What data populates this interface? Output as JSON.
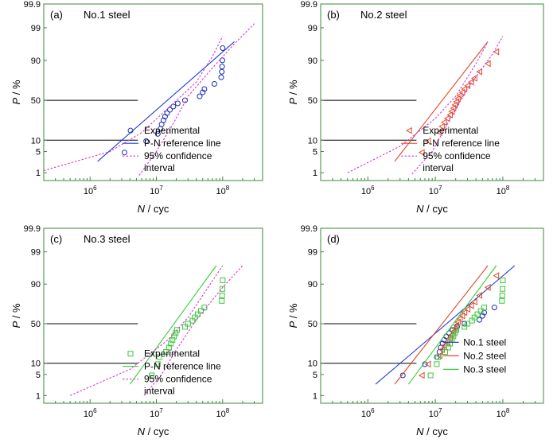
{
  "chart_data": [
    {
      "type": "scatter",
      "panel_label": "(a)",
      "title": "No.1 steel",
      "xlabel_var": "N",
      "xlabel_unit": " / cyc",
      "ylabel_var": "P",
      "ylabel_unit": " / %",
      "x_scale": "log",
      "xlim": [
        200000,
        400000000
      ],
      "x_ticks": [
        {
          "v": 1000000,
          "exp": "6"
        },
        {
          "v": 10000000,
          "exp": "7"
        },
        {
          "v": 100000000,
          "exp": "8"
        }
      ],
      "y_scale": "probability",
      "ylim": [
        0.5,
        99.9
      ],
      "y_ticks": [
        "1",
        "5",
        "10",
        "50",
        "90",
        "99",
        "99.9"
      ],
      "reference_lines_y": [
        10,
        50
      ],
      "legend": {
        "entries": [
          "Experimental",
          "P-N reference line",
          "95% confidence",
          "interval"
        ],
        "position": "bottom-right"
      },
      "series": [
        {
          "name": "Experimental",
          "kind": "points",
          "marker": "circle",
          "color": "#1a2fb0",
          "points": [
            [
              3300000,
              4.7
            ],
            [
              7000000,
              9.5
            ],
            [
              10500000,
              14
            ],
            [
              11500000,
              18
            ],
            [
              12000000,
              22
            ],
            [
              12800000,
              26
            ],
            [
              13500000,
              30
            ],
            [
              14500000,
              34
            ],
            [
              16000000,
              38
            ],
            [
              18000000,
              42
            ],
            [
              21000000,
              46
            ],
            [
              27000000,
              50
            ],
            [
              45000000,
              55
            ],
            [
              50000000,
              60
            ],
            [
              53000000,
              64
            ],
            [
              75000000,
              70
            ],
            [
              95000000,
              77
            ],
            [
              97000000,
              82
            ],
            [
              98000000,
              86
            ],
            [
              99000000,
              90
            ],
            [
              100000000,
              95.3
            ]
          ]
        },
        {
          "name": "P-N reference line",
          "kind": "line",
          "color": "#1f3ed6",
          "points": [
            [
              1300000,
              2.5
            ],
            [
              150000000,
              97
            ]
          ]
        },
        {
          "name": "95% confidence interval",
          "kind": "dashed",
          "color": "#d13ad1",
          "points": [
            [
              200000,
              1.2
            ],
            [
              2000000,
              5
            ],
            [
              6000000,
              15
            ],
            [
              15000000,
              40
            ],
            [
              40000000,
              72
            ],
            [
              70000000,
              92
            ],
            [
              100000000,
              98
            ]
          ]
        },
        {
          "name": "95% confidence interval",
          "kind": "dashed",
          "color": "#d13ad1",
          "points": [
            [
              5500000,
              0.8
            ],
            [
              10000000,
              5
            ],
            [
              17000000,
              20
            ],
            [
              30000000,
              55
            ],
            [
              70000000,
              85
            ],
            [
              150000000,
              96.5
            ],
            [
              300000000,
              99.3
            ]
          ]
        }
      ]
    },
    {
      "type": "scatter",
      "panel_label": "(b)",
      "title": "No.2 steel",
      "xlabel_var": "N",
      "xlabel_unit": " / cyc",
      "ylabel_var": "P",
      "ylabel_unit": " / %",
      "x_scale": "log",
      "xlim": [
        200000,
        400000000
      ],
      "x_ticks": [
        {
          "v": 1000000,
          "exp": "6"
        },
        {
          "v": 10000000,
          "exp": "7"
        },
        {
          "v": 100000000,
          "exp": "8"
        }
      ],
      "y_scale": "probability",
      "ylim": [
        0.5,
        99.9
      ],
      "y_ticks": [
        "1",
        "5",
        "10",
        "50",
        "90",
        "99",
        "99.9"
      ],
      "reference_lines_y": [
        10,
        50
      ],
      "legend": {
        "entries": [
          "Experimental",
          "P-N reference line",
          "95% confidence",
          "interval"
        ],
        "position": "bottom-right"
      },
      "series": [
        {
          "name": "Experimental",
          "kind": "points",
          "marker": "triangle",
          "color": "#e04a2a",
          "points": [
            [
              6300000,
              4.7
            ],
            [
              7800000,
              9.5
            ],
            [
              11500000,
              15
            ],
            [
              12500000,
              20
            ],
            [
              13500000,
              24
            ],
            [
              15000000,
              28
            ],
            [
              16500000,
              32
            ],
            [
              17500000,
              36
            ],
            [
              18500000,
              40
            ],
            [
              19500000,
              44
            ],
            [
              20500000,
              48
            ],
            [
              21500000,
              52
            ],
            [
              23000000,
              56
            ],
            [
              25000000,
              60
            ],
            [
              27000000,
              64
            ],
            [
              30000000,
              68
            ],
            [
              34000000,
              72
            ],
            [
              38000000,
              76
            ],
            [
              45000000,
              82
            ],
            [
              60000000,
              88
            ],
            [
              80000000,
              94
            ]
          ]
        },
        {
          "name": "P-N reference line",
          "kind": "line",
          "color": "#e04a2a",
          "points": [
            [
              2500000,
              2.5
            ],
            [
              60000000,
              97
            ]
          ]
        },
        {
          "name": "95% confidence interval",
          "kind": "dashed",
          "color": "#d13ad1",
          "points": [
            [
              500000,
              1.0
            ],
            [
              3000000,
              7
            ],
            [
              10000000,
              28
            ],
            [
              20000000,
              55
            ],
            [
              40000000,
              88
            ],
            [
              60000000,
              97
            ]
          ]
        },
        {
          "name": "95% confidence interval",
          "kind": "dashed",
          "color": "#d13ad1",
          "points": [
            [
              4500000,
              0.9
            ],
            [
              9000000,
              5
            ],
            [
              15000000,
              22
            ],
            [
              30000000,
              65
            ],
            [
              70000000,
              93
            ],
            [
              100000000,
              98
            ]
          ]
        }
      ]
    },
    {
      "type": "scatter",
      "panel_label": "(c)",
      "title": "No.3 steel",
      "xlabel_var": "N",
      "xlabel_unit": " / cyc",
      "ylabel_var": "P",
      "ylabel_unit": " / %",
      "x_scale": "log",
      "xlim": [
        200000,
        400000000
      ],
      "x_ticks": [
        {
          "v": 1000000,
          "exp": "6"
        },
        {
          "v": 10000000,
          "exp": "7"
        },
        {
          "v": 100000000,
          "exp": "8"
        }
      ],
      "y_scale": "probability",
      "ylim": [
        0.5,
        99.9
      ],
      "y_ticks": [
        "1",
        "5",
        "10",
        "50",
        "90",
        "99",
        "99.9"
      ],
      "reference_lines_y": [
        10,
        50
      ],
      "legend": {
        "entries": [
          "Experimental",
          "P-N reference line",
          "95% confidence",
          "interval"
        ],
        "position": "bottom-right"
      },
      "series": [
        {
          "name": "Experimental",
          "kind": "points",
          "marker": "square",
          "color": "#3cc83c",
          "points": [
            [
              8500000,
              4.7
            ],
            [
              10500000,
              9.5
            ],
            [
              11000000,
              14
            ],
            [
              14000000,
              18
            ],
            [
              15500000,
              22
            ],
            [
              16500000,
              26
            ],
            [
              17500000,
              30
            ],
            [
              18500000,
              34
            ],
            [
              19500000,
              38
            ],
            [
              20500000,
              42
            ],
            [
              27000000,
              46
            ],
            [
              30000000,
              50
            ],
            [
              35000000,
              54
            ],
            [
              38000000,
              58
            ],
            [
              42000000,
              62
            ],
            [
              47000000,
              66
            ],
            [
              53000000,
              70
            ],
            [
              97000000,
              77
            ],
            [
              98000000,
              82
            ],
            [
              99000000,
              87
            ],
            [
              100000000,
              92
            ]
          ]
        },
        {
          "name": "P-N reference line",
          "kind": "line",
          "color": "#3cc83c",
          "points": [
            [
              4000000,
              2.5
            ],
            [
              80000000,
              97
            ]
          ]
        },
        {
          "name": "95% confidence interval",
          "kind": "dashed",
          "color": "#d13ad1",
          "points": [
            [
              500000,
              1.0
            ],
            [
              4000000,
              7
            ],
            [
              15000000,
              30
            ],
            [
              30000000,
              58
            ],
            [
              60000000,
              88
            ],
            [
              100000000,
              97
            ]
          ]
        },
        {
          "name": "95% confidence interval",
          "kind": "dashed",
          "color": "#d13ad1",
          "points": [
            [
              6500000,
              1.0
            ],
            [
              12000000,
              5
            ],
            [
              20000000,
              20
            ],
            [
              40000000,
              55
            ],
            [
              100000000,
              88
            ],
            [
              200000000,
              97
            ]
          ]
        }
      ]
    },
    {
      "type": "scatter",
      "panel_label": "(d)",
      "title": "",
      "xlabel_var": "N",
      "xlabel_unit": " / cyc",
      "ylabel_var": "P",
      "ylabel_unit": " / %",
      "x_scale": "log",
      "xlim": [
        200000,
        400000000
      ],
      "x_ticks": [
        {
          "v": 1000000,
          "exp": "6"
        },
        {
          "v": 10000000,
          "exp": "7"
        },
        {
          "v": 100000000,
          "exp": "8"
        }
      ],
      "y_scale": "probability",
      "ylim": [
        0.5,
        99.9
      ],
      "y_ticks": [
        "1",
        "5",
        "10",
        "50",
        "90",
        "99",
        "99.9"
      ],
      "reference_lines_y": [
        10,
        50
      ],
      "legend": {
        "entries": [
          "No.1 steel",
          "No.2 steel",
          "No.3 steel"
        ],
        "position": "bottom-right"
      },
      "series": [
        {
          "name": "No.1 steel",
          "kind": "points",
          "marker": "circle",
          "color": "#1a2fb0",
          "points": [
            [
              3300000,
              4.7
            ],
            [
              7000000,
              9.5
            ],
            [
              10500000,
              14
            ],
            [
              11500000,
              18
            ],
            [
              12000000,
              22
            ],
            [
              12800000,
              26
            ],
            [
              13500000,
              30
            ],
            [
              14500000,
              34
            ],
            [
              16000000,
              38
            ],
            [
              18000000,
              42
            ],
            [
              21000000,
              46
            ],
            [
              27000000,
              50
            ],
            [
              45000000,
              55
            ],
            [
              50000000,
              60
            ],
            [
              53000000,
              64
            ],
            [
              75000000,
              70
            ]
          ]
        },
        {
          "name": "No.1 steel",
          "kind": "line",
          "color": "#1f3ed6",
          "points": [
            [
              1300000,
              2.5
            ],
            [
              150000000,
              97
            ]
          ]
        },
        {
          "name": "No.2 steel",
          "kind": "points",
          "marker": "triangle",
          "color": "#e04a2a",
          "points": [
            [
              6300000,
              4.7
            ],
            [
              7800000,
              9.5
            ],
            [
              11500000,
              15
            ],
            [
              12500000,
              20
            ],
            [
              13500000,
              24
            ],
            [
              15000000,
              28
            ],
            [
              16500000,
              32
            ],
            [
              17500000,
              36
            ],
            [
              18500000,
              40
            ],
            [
              19500000,
              44
            ],
            [
              20500000,
              48
            ],
            [
              21500000,
              52
            ],
            [
              23000000,
              56
            ],
            [
              25000000,
              60
            ],
            [
              27000000,
              64
            ],
            [
              30000000,
              68
            ],
            [
              34000000,
              72
            ],
            [
              38000000,
              76
            ],
            [
              45000000,
              82
            ],
            [
              60000000,
              88
            ],
            [
              80000000,
              94
            ]
          ]
        },
        {
          "name": "No.2 steel",
          "kind": "line",
          "color": "#e04a2a",
          "points": [
            [
              2500000,
              2.5
            ],
            [
              60000000,
              97
            ]
          ]
        },
        {
          "name": "No.3 steel",
          "kind": "points",
          "marker": "square",
          "color": "#3cc83c",
          "points": [
            [
              8500000,
              4.7
            ],
            [
              10500000,
              9.5
            ],
            [
              11000000,
              14
            ],
            [
              14000000,
              18
            ],
            [
              15500000,
              22
            ],
            [
              16500000,
              26
            ],
            [
              17500000,
              30
            ],
            [
              18500000,
              34
            ],
            [
              19500000,
              38
            ],
            [
              20500000,
              42
            ],
            [
              27000000,
              46
            ],
            [
              30000000,
              50
            ],
            [
              35000000,
              54
            ],
            [
              38000000,
              58
            ],
            [
              42000000,
              62
            ],
            [
              47000000,
              66
            ],
            [
              53000000,
              70
            ],
            [
              97000000,
              77
            ],
            [
              98000000,
              82
            ],
            [
              99000000,
              87
            ],
            [
              100000000,
              92
            ]
          ]
        },
        {
          "name": "No.3 steel",
          "kind": "line",
          "color": "#3cc83c",
          "points": [
            [
              4000000,
              2.5
            ],
            [
              80000000,
              97
            ]
          ]
        }
      ]
    }
  ]
}
